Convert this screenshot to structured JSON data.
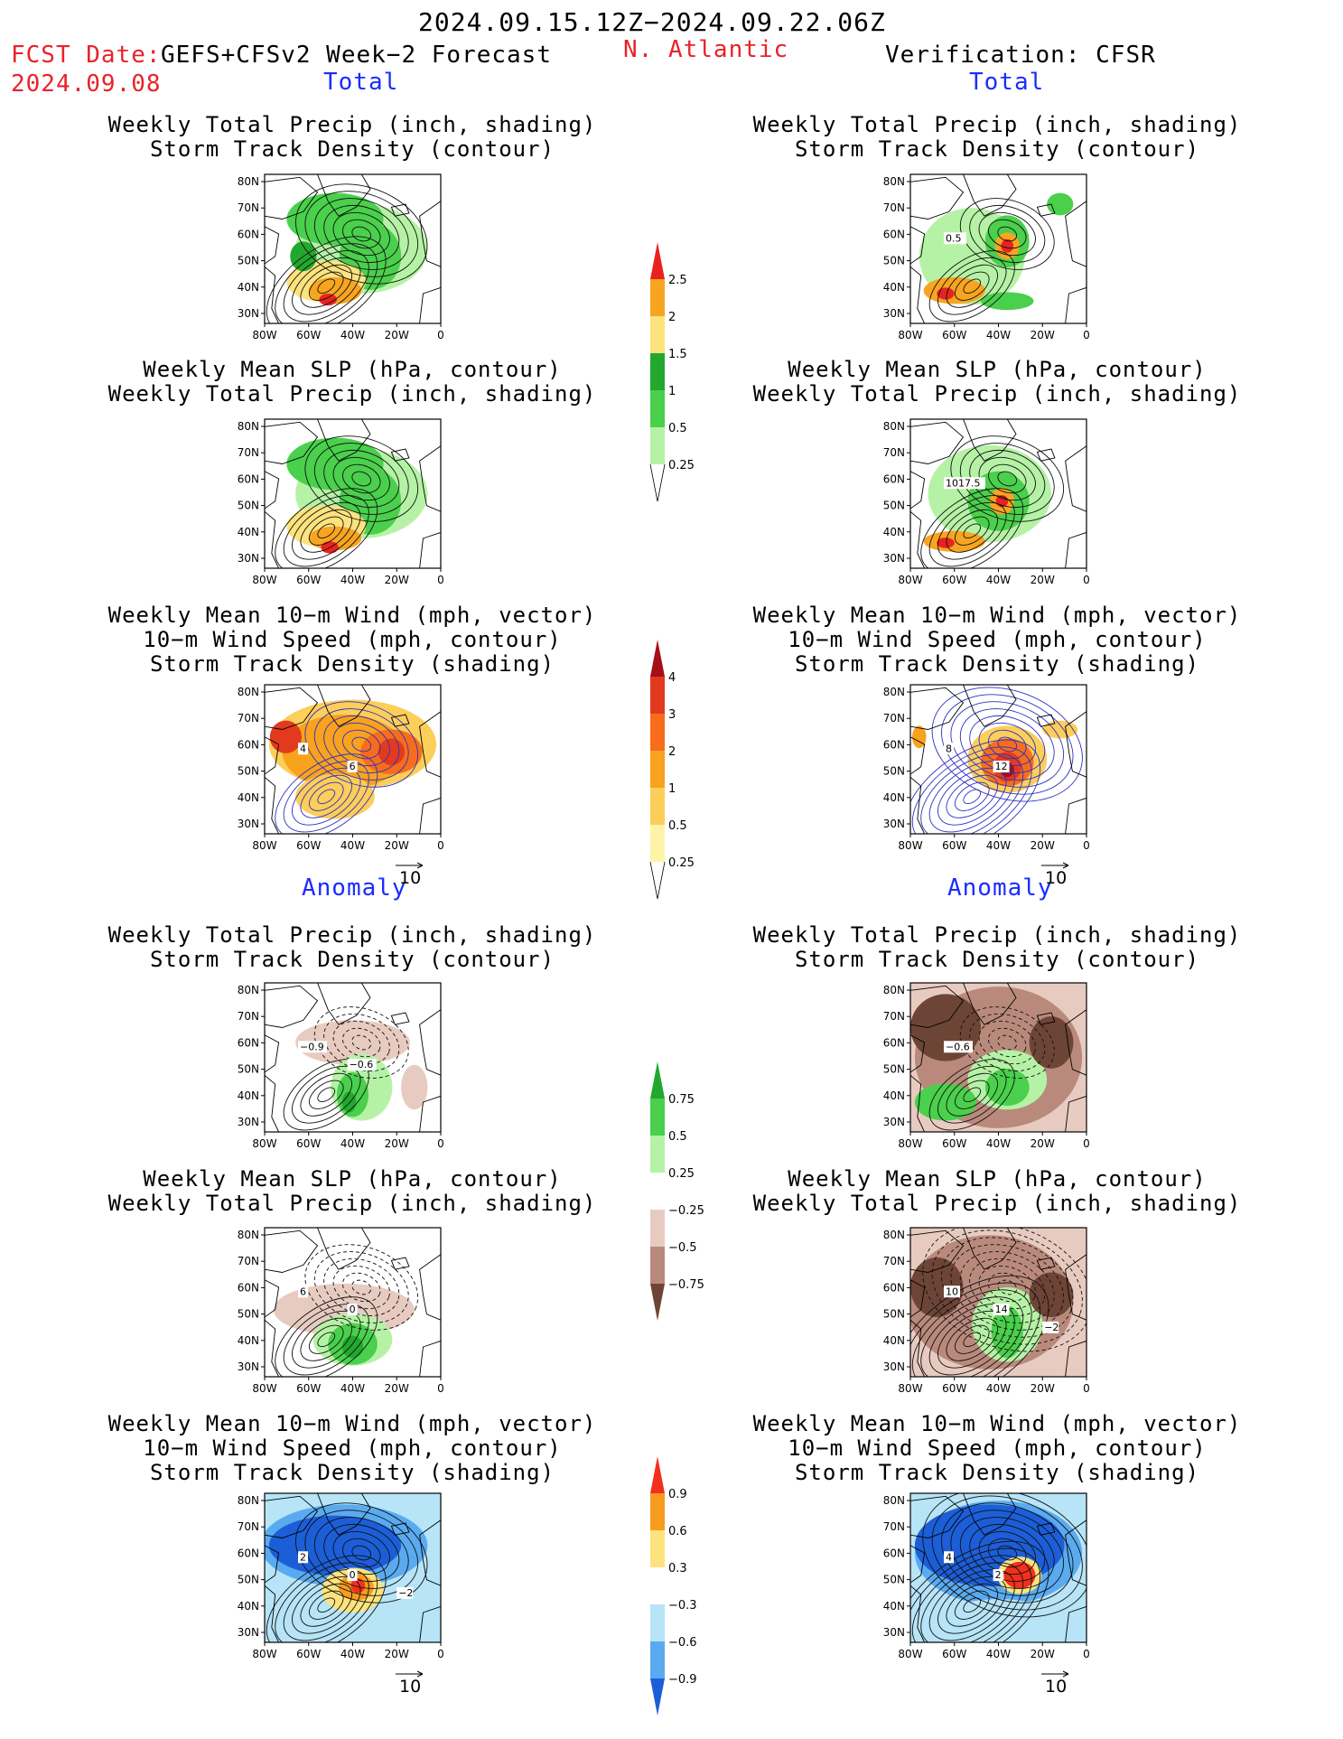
{
  "header": {
    "period": "2024.09.15.12Z−2024.09.22.06Z",
    "fcst_label": "FCST Date:",
    "fcst_model": "GEFS+CFSv2 Week−2 Forecast",
    "fcst_date": "2024.09.08",
    "region": "N. Atlantic",
    "verification": "Verification: CFSR"
  },
  "sections": {
    "total": "Total",
    "anomaly": "Anomaly"
  },
  "titles": {
    "precip_track": [
      "Weekly Total Precip (inch, shading)",
      "Storm Track Density (contour)"
    ],
    "slp_precip": [
      "Weekly Mean SLP (hPa, contour)",
      "Weekly Total Precip (inch, shading)"
    ],
    "wind_track": [
      "Weekly Mean 10−m Wind (mph, vector)",
      "10−m Wind Speed (mph, contour)",
      "Storm Track Density (shading)"
    ]
  },
  "vector_ref": "10",
  "axes": {
    "lat_ticks": [
      "80N",
      "70N",
      "60N",
      "50N",
      "40N",
      "30N"
    ],
    "lon_ticks": [
      "80W",
      "60W",
      "40W",
      "20W",
      "0"
    ]
  },
  "panel_labels": {
    "p2": [
      "0.5"
    ],
    "p4": [
      "1017.5"
    ],
    "p5": [
      "4",
      "6"
    ],
    "p6": [
      "8",
      "12"
    ],
    "p7": [
      "−0.9",
      "−0.6"
    ],
    "p8": [
      "−0.6"
    ],
    "p9": [
      "6",
      "0"
    ],
    "p10": [
      "10",
      "14",
      "−2"
    ],
    "p11": [
      "2",
      "0",
      "−2"
    ],
    "p12": [
      "4",
      "2"
    ]
  },
  "chart_data": [
    {
      "type": "heatmap",
      "name": "total-precip",
      "colorbar": {
        "labels": [
          "2.5",
          "2",
          "1.5",
          "1",
          "0.5",
          "0.25"
        ],
        "colors": [
          "#e8231f",
          "#f7a521",
          "#fde37e",
          "#22a82e",
          "#4ad04c",
          "#b6f2a6"
        ]
      }
    },
    {
      "type": "heatmap",
      "name": "total-storm-track",
      "colorbar": {
        "labels": [
          "4",
          "3",
          "2",
          "1",
          "0.5",
          "0.25"
        ],
        "colors": [
          "#a50f15",
          "#e23a1e",
          "#f76d1b",
          "#f9a21e",
          "#fcce5a",
          "#fff3a8"
        ]
      }
    },
    {
      "type": "heatmap",
      "name": "anomaly-precip",
      "colorbar": {
        "labels": [
          "0.75",
          "0.5",
          "0.25",
          "−0.25",
          "−0.5",
          "−0.75"
        ],
        "colors": [
          "#22a82e",
          "#4ad04c",
          "#b6f2a6",
          "#e8cbc0",
          "#b98a7c",
          "#6d4536"
        ]
      }
    },
    {
      "type": "heatmap",
      "name": "anomaly-storm-track",
      "colorbar": {
        "labels": [
          "0.9",
          "0.6",
          "0.3",
          "−0.3",
          "−0.6",
          "−0.9"
        ],
        "colors": [
          "#f2301e",
          "#f79c1e",
          "#fde37e",
          "#b7e4f7",
          "#5aaaf0",
          "#1c5ed8"
        ]
      }
    }
  ]
}
